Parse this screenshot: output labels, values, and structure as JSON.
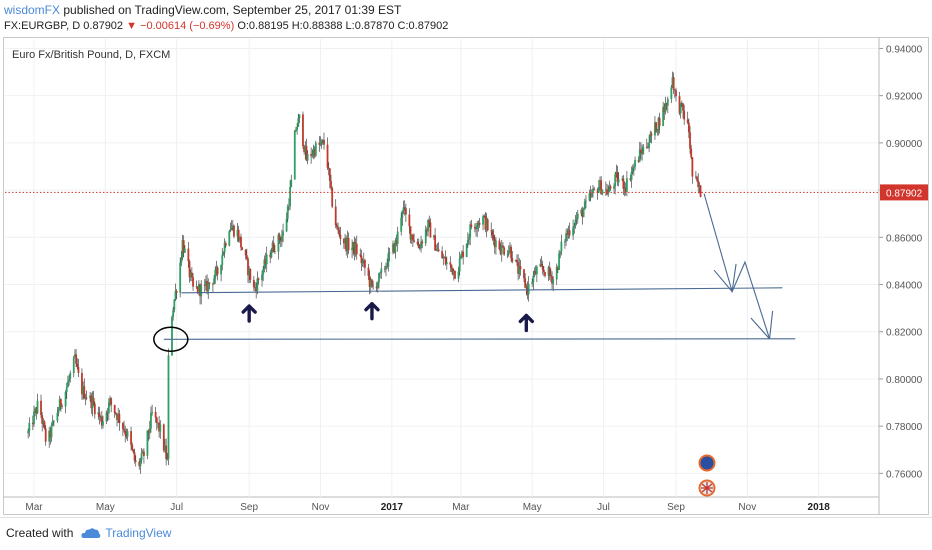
{
  "header": {
    "author": "wisdomFX",
    "published_text": "published on TradingView.com, September 25, 2017 01:39 EST",
    "symbol": "FX:EURGBP, D",
    "last_price": "0.87902",
    "change": "▼ −0.00614 (−0.69%)",
    "ohlc": "O:0.88195 H:0.88388 L:0.87870 C:0.87902"
  },
  "footer": {
    "created_with": "Created with",
    "brand": "TradingView"
  },
  "colors": {
    "up": "#2e9e63",
    "down": "#c0392b",
    "line": "#4a6a92",
    "price_marker": "#d2352c",
    "brand": "#4a8ad8"
  },
  "chart_data": {
    "type": "candlestick",
    "title": "Euro Fx/British Pound, D, FXCM",
    "y_ticks": [
      "0.94000",
      "0.92000",
      "0.90000",
      "0.88000",
      "0.86000",
      "0.84000",
      "0.82000",
      "0.80000",
      "0.78000",
      "0.76000"
    ],
    "ylim": [
      0.75,
      0.944
    ],
    "x_ticks": [
      "Mar",
      "May",
      "Jul",
      "Sep",
      "Nov",
      "2017",
      "Mar",
      "May",
      "Jul",
      "Sep",
      "Nov",
      "2018"
    ],
    "current_price_label": "0.87902",
    "current_price": 0.87902,
    "price_path": [
      {
        "date": "2016-02-25",
        "price": 0.777
      },
      {
        "date": "2016-03-05",
        "price": 0.79
      },
      {
        "date": "2016-03-12",
        "price": 0.772
      },
      {
        "date": "2016-03-20",
        "price": 0.785
      },
      {
        "date": "2016-03-28",
        "price": 0.795
      },
      {
        "date": "2016-04-05",
        "price": 0.808
      },
      {
        "date": "2016-04-10",
        "price": 0.796
      },
      {
        "date": "2016-04-20",
        "price": 0.79
      },
      {
        "date": "2016-04-28",
        "price": 0.782
      },
      {
        "date": "2016-05-05",
        "price": 0.79
      },
      {
        "date": "2016-05-12",
        "price": 0.784
      },
      {
        "date": "2016-05-20",
        "price": 0.776
      },
      {
        "date": "2016-05-28",
        "price": 0.762
      },
      {
        "date": "2016-06-03",
        "price": 0.768
      },
      {
        "date": "2016-06-10",
        "price": 0.785
      },
      {
        "date": "2016-06-17",
        "price": 0.778
      },
      {
        "date": "2016-06-23",
        "price": 0.765
      },
      {
        "date": "2016-06-24",
        "price": 0.81
      },
      {
        "date": "2016-06-27",
        "price": 0.828
      },
      {
        "date": "2016-07-03",
        "price": 0.845
      },
      {
        "date": "2016-07-06",
        "price": 0.858
      },
      {
        "date": "2016-07-15",
        "price": 0.838
      },
      {
        "date": "2016-07-25",
        "price": 0.838
      },
      {
        "date": "2016-08-05",
        "price": 0.845
      },
      {
        "date": "2016-08-15",
        "price": 0.865
      },
      {
        "date": "2016-08-22",
        "price": 0.862
      },
      {
        "date": "2016-08-29",
        "price": 0.85
      },
      {
        "date": "2016-09-05",
        "price": 0.838
      },
      {
        "date": "2016-09-10",
        "price": 0.843
      },
      {
        "date": "2016-09-20",
        "price": 0.855
      },
      {
        "date": "2016-10-01",
        "price": 0.862
      },
      {
        "date": "2016-10-07",
        "price": 0.883
      },
      {
        "date": "2016-10-10",
        "price": 0.905
      },
      {
        "date": "2016-10-14",
        "price": 0.91
      },
      {
        "date": "2016-10-20",
        "price": 0.893
      },
      {
        "date": "2016-10-28",
        "price": 0.898
      },
      {
        "date": "2016-11-05",
        "price": 0.9
      },
      {
        "date": "2016-11-10",
        "price": 0.878
      },
      {
        "date": "2016-11-15",
        "price": 0.863
      },
      {
        "date": "2016-11-23",
        "price": 0.857
      },
      {
        "date": "2016-12-01",
        "price": 0.855
      },
      {
        "date": "2016-12-10",
        "price": 0.846
      },
      {
        "date": "2016-12-15",
        "price": 0.838
      },
      {
        "date": "2016-12-22",
        "price": 0.843
      },
      {
        "date": "2016-12-30",
        "price": 0.852
      },
      {
        "date": "2017-01-05",
        "price": 0.858
      },
      {
        "date": "2017-01-10",
        "price": 0.873
      },
      {
        "date": "2017-01-17",
        "price": 0.862
      },
      {
        "date": "2017-01-24",
        "price": 0.856
      },
      {
        "date": "2017-02-01",
        "price": 0.865
      },
      {
        "date": "2017-02-10",
        "price": 0.853
      },
      {
        "date": "2017-02-17",
        "price": 0.849
      },
      {
        "date": "2017-02-25",
        "price": 0.845
      },
      {
        "date": "2017-03-05",
        "price": 0.857
      },
      {
        "date": "2017-03-10",
        "price": 0.865
      },
      {
        "date": "2017-03-20",
        "price": 0.868
      },
      {
        "date": "2017-03-28",
        "price": 0.86
      },
      {
        "date": "2017-04-05",
        "price": 0.855
      },
      {
        "date": "2017-04-12",
        "price": 0.855
      },
      {
        "date": "2017-04-18",
        "price": 0.847
      },
      {
        "date": "2017-04-23",
        "price": 0.842
      },
      {
        "date": "2017-04-27",
        "price": 0.838
      },
      {
        "date": "2017-05-05",
        "price": 0.846
      },
      {
        "date": "2017-05-12",
        "price": 0.846
      },
      {
        "date": "2017-05-20",
        "price": 0.842
      },
      {
        "date": "2017-05-27",
        "price": 0.858
      },
      {
        "date": "2017-06-05",
        "price": 0.866
      },
      {
        "date": "2017-06-12",
        "price": 0.87
      },
      {
        "date": "2017-06-20",
        "price": 0.877
      },
      {
        "date": "2017-06-27",
        "price": 0.882
      },
      {
        "date": "2017-07-05",
        "price": 0.879
      },
      {
        "date": "2017-07-12",
        "price": 0.885
      },
      {
        "date": "2017-07-20",
        "price": 0.882
      },
      {
        "date": "2017-07-25",
        "price": 0.888
      },
      {
        "date": "2017-08-01",
        "price": 0.895
      },
      {
        "date": "2017-08-10",
        "price": 0.902
      },
      {
        "date": "2017-08-18",
        "price": 0.91
      },
      {
        "date": "2017-08-25",
        "price": 0.918
      },
      {
        "date": "2017-08-29",
        "price": 0.928
      },
      {
        "date": "2017-09-01",
        "price": 0.918
      },
      {
        "date": "2017-09-07",
        "price": 0.913
      },
      {
        "date": "2017-09-12",
        "price": 0.905
      },
      {
        "date": "2017-09-15",
        "price": 0.886
      },
      {
        "date": "2017-09-19",
        "price": 0.882
      },
      {
        "date": "2017-09-22",
        "price": 0.879
      }
    ],
    "drawings": {
      "support_lines": [
        {
          "from": {
            "date": "2016-07-05",
            "price": 0.8365
          },
          "to": {
            "date": "2017-12-01",
            "price": 0.8386
          }
        },
        {
          "from": {
            "date": "2016-06-20",
            "price": 0.8168
          },
          "to": {
            "date": "2017-12-12",
            "price": 0.817
          }
        }
      ],
      "arrow_path": [
        {
          "date": "2017-09-25",
          "price": 0.8785
        },
        {
          "date": "2017-10-19",
          "price": 0.837
        },
        {
          "date": "2017-10-30",
          "price": 0.8495
        },
        {
          "date": "2017-11-20",
          "price": 0.817
        }
      ],
      "up_arrows": [
        {
          "date": "2016-09-01",
          "price": 0.8275
        },
        {
          "date": "2016-12-15",
          "price": 0.8285
        },
        {
          "date": "2017-04-26",
          "price": 0.8235
        }
      ],
      "circle": {
        "date": "2016-06-26",
        "price": 0.8168
      }
    }
  }
}
